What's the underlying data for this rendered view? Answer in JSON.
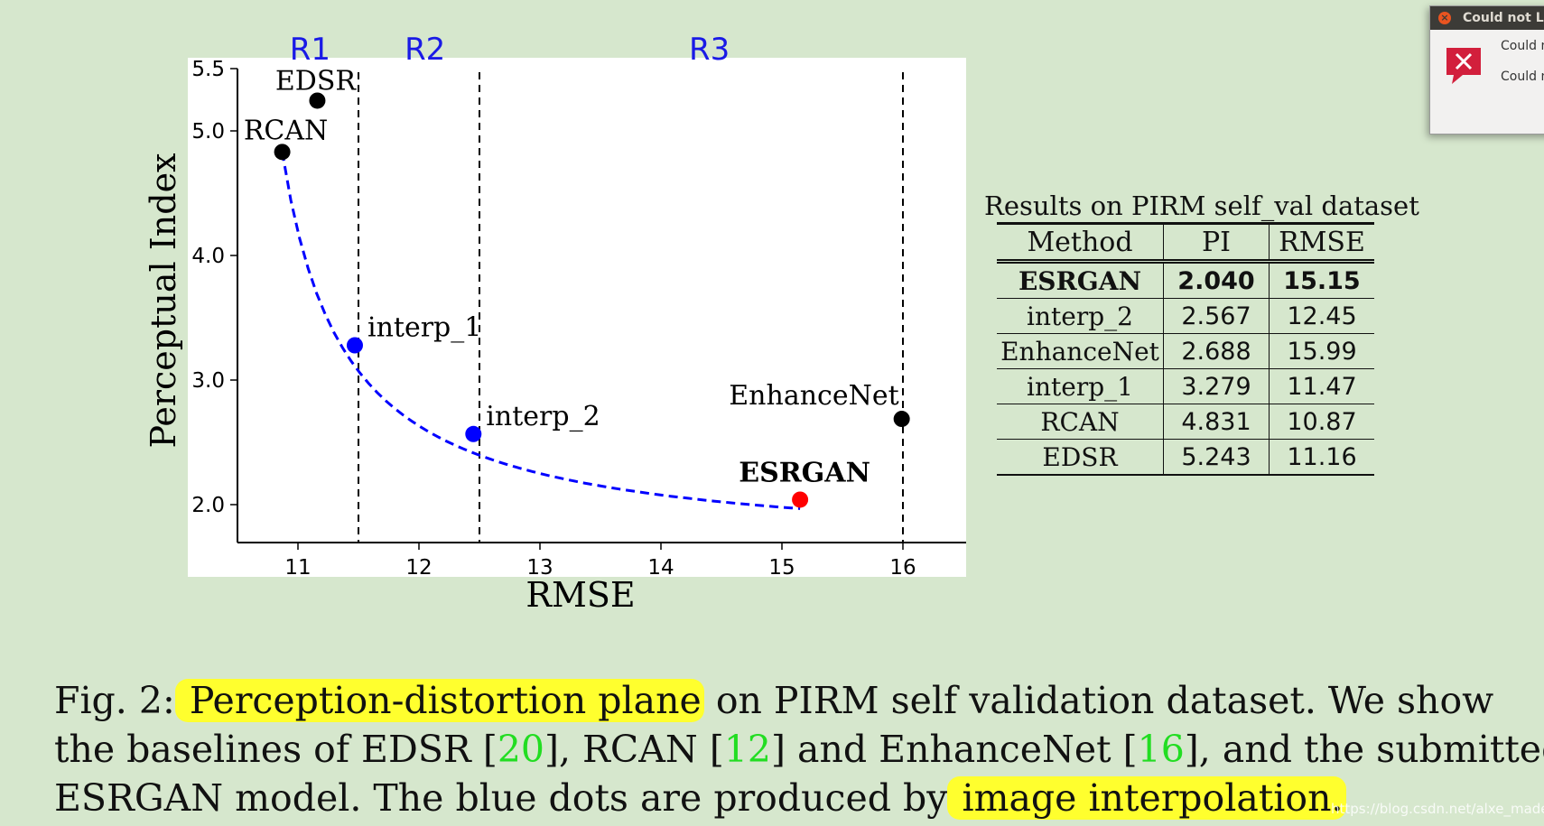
{
  "popup": {
    "title": "Could not La",
    "lines": [
      "Could n",
      "Could n"
    ],
    "icon": "error-icon",
    "close_icon": "close-icon"
  },
  "chart_data": {
    "type": "scatter",
    "xlabel": "RMSE",
    "ylabel": "Perceptual Index",
    "xlim": [
      10.5,
      16.5
    ],
    "ylim": [
      1.7,
      5.5
    ],
    "xticks": [
      11,
      12,
      13,
      14,
      15,
      16
    ],
    "yticks": [
      2.0,
      3.0,
      4.0,
      5.0,
      5.5
    ],
    "region_lines": [
      11.5,
      12.5,
      16.0
    ],
    "regions": [
      {
        "label": "R1",
        "x": 11.1
      },
      {
        "label": "R2",
        "x": 12.05
      },
      {
        "label": "R3",
        "x": 14.4
      }
    ],
    "points": [
      {
        "label": "EDSR",
        "x": 11.16,
        "y": 5.243,
        "color": "#000000"
      },
      {
        "label": "RCAN",
        "x": 10.87,
        "y": 4.831,
        "color": "#000000"
      },
      {
        "label": "interp_1",
        "x": 11.47,
        "y": 3.279,
        "color": "#0000ff"
      },
      {
        "label": "interp_2",
        "x": 12.45,
        "y": 2.567,
        "color": "#0000ff"
      },
      {
        "label": "EnhanceNet",
        "x": 15.99,
        "y": 2.688,
        "color": "#000000"
      },
      {
        "label": "ESRGAN",
        "x": 15.15,
        "y": 2.04,
        "color": "#ff0000"
      }
    ],
    "curve_color": "#0000ff",
    "grid": false
  },
  "results": {
    "title": "Results on PIRM self_val dataset",
    "headers": [
      "Method",
      "PI",
      "RMSE"
    ],
    "rows": [
      {
        "method": "ESRGAN",
        "pi": "2.040",
        "rmse": "15.15"
      },
      {
        "method": "interp_2",
        "pi": "2.567",
        "rmse": "12.45"
      },
      {
        "method": "EnhanceNet",
        "pi": "2.688",
        "rmse": "15.99"
      },
      {
        "method": "interp_1",
        "pi": "3.279",
        "rmse": "11.47"
      },
      {
        "method": "RCAN",
        "pi": "4.831",
        "rmse": "10.87"
      },
      {
        "method": "EDSR",
        "pi": "5.243",
        "rmse": "11.16"
      }
    ]
  },
  "caption": {
    "fig": "Fig. 2:",
    "hl1": " Perception-distortion plane",
    "t1": " on PIRM self validation dataset. We show",
    "t2": "the baselines of EDSR [",
    "c1": "20",
    "t3": "], RCAN [",
    "c2": "12",
    "t4": "] and EnhanceNet [",
    "c3": "16",
    "t5": "], and the submitted",
    "t6": "ESRGAN model. The blue dots are produced by",
    "hl2": " image interpolation."
  },
  "watermark": "https://blog.csdn.net/alxe_made"
}
